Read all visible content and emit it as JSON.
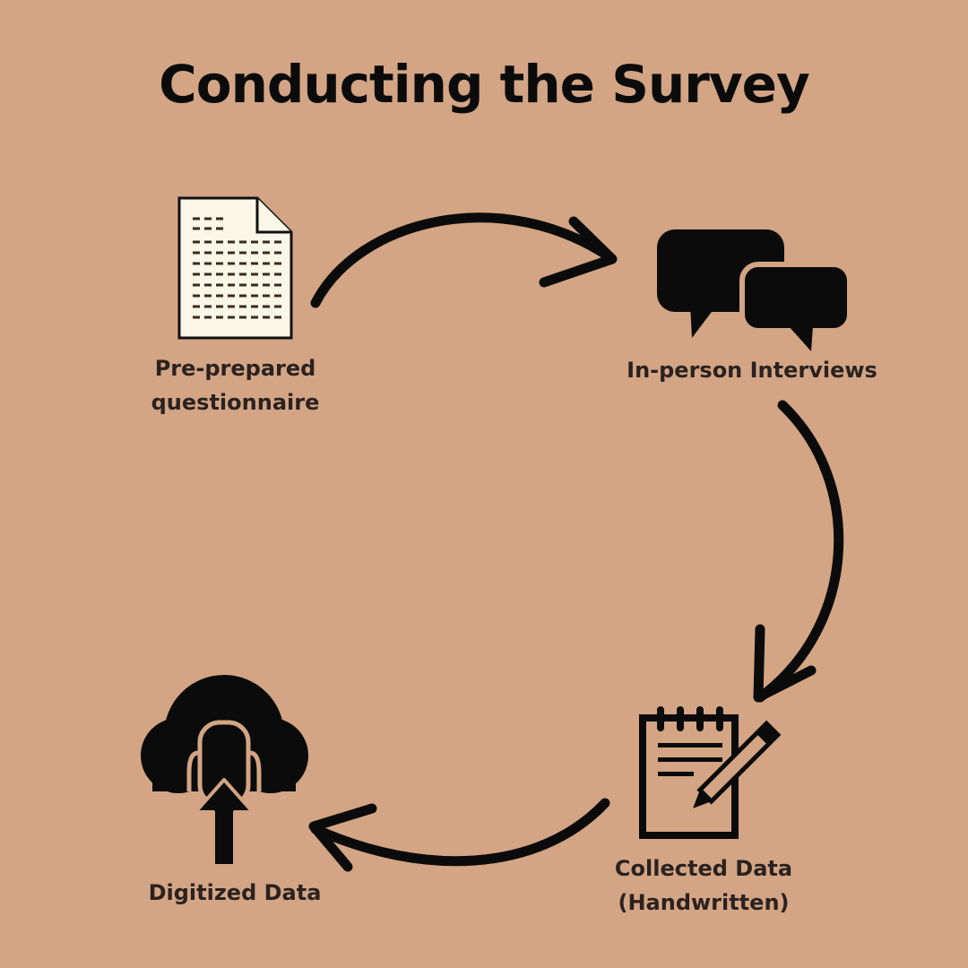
{
  "title": "Conducting the Survey",
  "steps": [
    {
      "label_lines": [
        "Pre-prepared",
        "questionnaire"
      ],
      "icon": "document-icon"
    },
    {
      "label_lines": [
        "In-person Interviews"
      ],
      "icon": "speech-bubbles-icon"
    },
    {
      "label_lines": [
        "Collected Data",
        "(Handwritten)"
      ],
      "icon": "notepad-pencil-icon"
    },
    {
      "label_lines": [
        "Digitized Data"
      ],
      "icon": "cloud-upload-icon"
    }
  ],
  "colors": {
    "background": "#d3a584",
    "ink": "#0b0b0b",
    "label": "#2b2220",
    "paper": "#fbf7e8"
  }
}
